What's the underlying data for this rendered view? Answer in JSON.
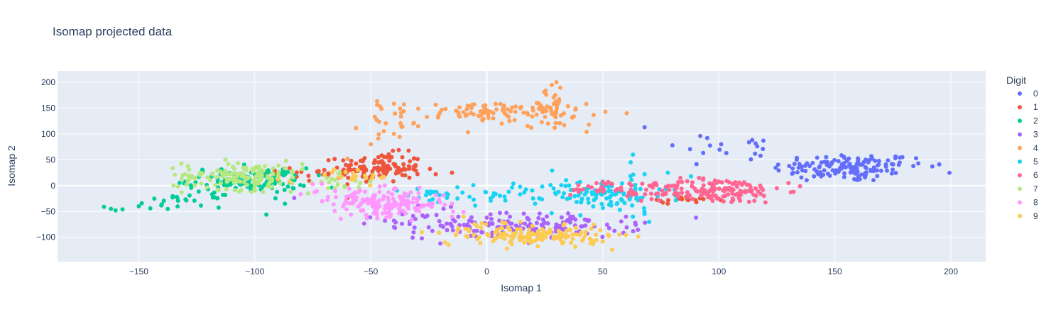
{
  "chart_data": {
    "type": "scatter",
    "title": "Isomap projected data",
    "xlabel": "Isomap 1",
    "ylabel": "Isomap 2",
    "xlim": [
      -185,
      215
    ],
    "ylim": [
      -147,
      222
    ],
    "xticks": [
      -150,
      -100,
      -50,
      0,
      50,
      100,
      150,
      200
    ],
    "xtick_labels": [
      "−150",
      "−100",
      "−50",
      "0",
      "50",
      "100",
      "150",
      "200"
    ],
    "yticks": [
      -100,
      -50,
      0,
      50,
      100,
      150,
      200
    ],
    "ytick_labels": [
      "−100",
      "−50",
      "0",
      "50",
      "100",
      "150",
      "200"
    ],
    "grid": true,
    "legend": {
      "title": "Digit",
      "placement": "right"
    },
    "plot_background": "#e5ecf6",
    "series": [
      {
        "name": "0",
        "color": "#636efa",
        "clusters": [
          {
            "cx": 155,
            "cy": 35,
            "sx": 16,
            "sy": 14,
            "n": 140
          },
          {
            "cx": 108,
            "cy": 75,
            "sx": 13,
            "sy": 10,
            "n": 12
          }
        ],
        "points": [
          [
            68,
            113
          ],
          [
            92,
            96
          ],
          [
            95,
            92
          ],
          [
            101,
            80
          ],
          [
            113,
            84
          ],
          [
            119,
            71
          ],
          [
            186,
            43
          ],
          [
            195,
            41
          ],
          [
            185,
            53
          ],
          [
            172,
            41
          ]
        ]
      },
      {
        "name": "1",
        "color": "#ef553b",
        "clusters": [
          {
            "cx": -46,
            "cy": 35,
            "sx": 9,
            "sy": 14,
            "n": 115
          },
          {
            "cx": -70,
            "cy": 25,
            "sx": 10,
            "sy": 10,
            "n": 25
          },
          {
            "cx": 84,
            "cy": -28,
            "sx": 8,
            "sy": 3,
            "n": 18
          }
        ],
        "points": [
          [
            -22,
            22
          ],
          [
            -15,
            25
          ],
          [
            -85,
            34
          ]
        ]
      },
      {
        "name": "2",
        "color": "#00cc96",
        "clusters": [
          {
            "cx": -103,
            "cy": 10,
            "sx": 13,
            "sy": 12,
            "n": 120
          },
          {
            "cx": -130,
            "cy": -30,
            "sx": 8,
            "sy": 6,
            "n": 22
          }
        ],
        "points": [
          [
            -165,
            -41
          ],
          [
            -162,
            -45
          ],
          [
            -160,
            -48
          ],
          [
            -157,
            -46
          ],
          [
            -150,
            -40
          ],
          [
            -145,
            -44
          ],
          [
            -140,
            -36
          ],
          [
            -87,
            -35
          ],
          [
            -95,
            -56
          ]
        ]
      },
      {
        "name": "3",
        "color": "#ab63fa",
        "clusters": [
          {
            "cx": 18,
            "cy": -78,
            "sx": 24,
            "sy": 12,
            "n": 145
          },
          {
            "cx": -30,
            "cy": -60,
            "sx": 10,
            "sy": 14,
            "n": 22
          }
        ],
        "points": [
          [
            -83,
            -24
          ],
          [
            -40,
            -80
          ],
          [
            -28,
            -102
          ],
          [
            -20,
            -112
          ],
          [
            64,
            -72
          ],
          [
            60,
            -60
          ]
        ]
      },
      {
        "name": "4",
        "color": "#ffa15a",
        "clusters": [
          {
            "cx": 2,
            "cy": 142,
            "sx": 20,
            "sy": 10,
            "n": 100
          },
          {
            "cx": 28,
            "cy": 150,
            "sx": 5,
            "sy": 18,
            "n": 35
          },
          {
            "cx": -40,
            "cy": 120,
            "sx": 7,
            "sy": 18,
            "n": 18
          }
        ],
        "points": [
          [
            30,
            200
          ],
          [
            28,
            195
          ],
          [
            43,
            104
          ],
          [
            44,
            118
          ],
          [
            -50,
            80
          ],
          [
            -60,
            52
          ],
          [
            -40,
            100
          ]
        ]
      },
      {
        "name": "5",
        "color": "#19d3f3",
        "clusters": [
          {
            "cx": 50,
            "cy": -18,
            "sx": 14,
            "sy": 16,
            "n": 110
          },
          {
            "cx": 5,
            "cy": -12,
            "sx": 14,
            "sy": 12,
            "n": 35
          },
          {
            "cx": -25,
            "cy": -20,
            "sx": 6,
            "sy": 8,
            "n": 15
          }
        ],
        "points": [
          [
            63,
            60
          ],
          [
            68,
            22
          ],
          [
            68,
            -55
          ],
          [
            70,
            -70
          ],
          [
            78,
            25
          ],
          [
            88,
            18
          ],
          [
            62,
            45
          ]
        ]
      },
      {
        "name": "6",
        "color": "#ff6692",
        "clusters": [
          {
            "cx": 100,
            "cy": -10,
            "sx": 14,
            "sy": 12,
            "n": 140
          },
          {
            "cx": 72,
            "cy": -10,
            "sx": 9,
            "sy": 9,
            "n": 35
          },
          {
            "cx": 48,
            "cy": -3,
            "sx": 6,
            "sy": 6,
            "n": 18
          }
        ],
        "points": [
          [
            130,
            5
          ],
          [
            125,
            -5
          ],
          [
            135,
            -1
          ],
          [
            36,
            -18
          ],
          [
            40,
            -8
          ]
        ]
      },
      {
        "name": "7",
        "color": "#b6e880",
        "clusters": [
          {
            "cx": -105,
            "cy": 20,
            "sx": 13,
            "sy": 14,
            "n": 140
          },
          {
            "cx": -62,
            "cy": 5,
            "sx": 7,
            "sy": 8,
            "n": 20
          }
        ],
        "points": [
          [
            -133,
            -2
          ],
          [
            -135,
            0
          ],
          [
            -128,
            14
          ],
          [
            -130,
            22
          ],
          [
            -77,
            -15
          ]
        ]
      },
      {
        "name": "8",
        "color": "#ff97ff",
        "clusters": [
          {
            "cx": -42,
            "cy": -35,
            "sx": 12,
            "sy": 12,
            "n": 155
          },
          {
            "cx": -60,
            "cy": -15,
            "sx": 10,
            "sy": 12,
            "n": 20
          }
        ],
        "points": [
          [
            -75,
            3
          ],
          [
            -71,
            -30
          ],
          [
            -15,
            -60
          ],
          [
            -10,
            -51
          ]
        ]
      },
      {
        "name": "9",
        "color": "#fecb52",
        "clusters": [
          {
            "cx": 25,
            "cy": -98,
            "sx": 14,
            "sy": 9,
            "n": 135
          },
          {
            "cx": -2,
            "cy": -88,
            "sx": 10,
            "sy": 10,
            "n": 30
          },
          {
            "cx": -55,
            "cy": 20,
            "sx": 8,
            "sy": 8,
            "n": 20
          }
        ],
        "points": [
          [
            -85,
            8
          ],
          [
            -90,
            12
          ],
          [
            -28,
            -90
          ],
          [
            -10,
            -60
          ],
          [
            45,
            -105
          ],
          [
            47,
            -95
          ]
        ]
      }
    ]
  }
}
